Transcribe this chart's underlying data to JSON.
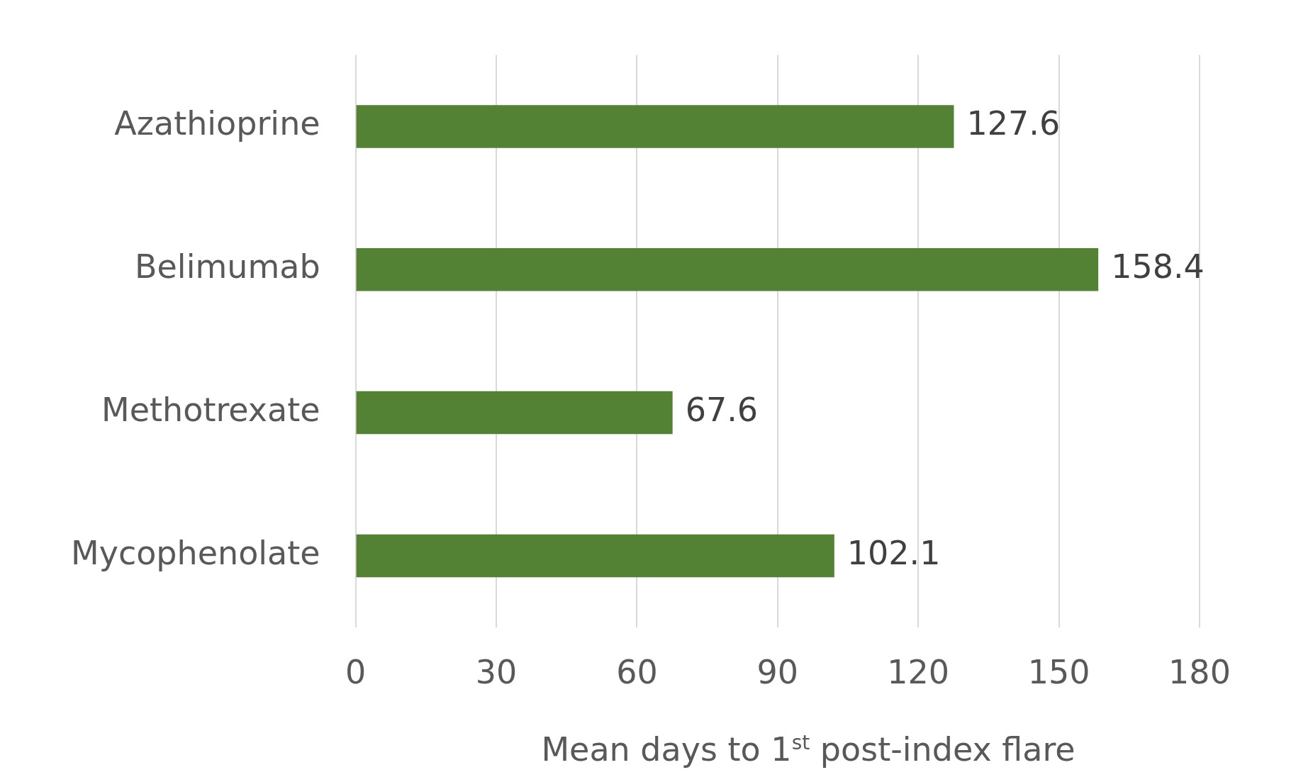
{
  "chart_data": {
    "type": "bar",
    "orientation": "horizontal",
    "categories": [
      "Azathioprine",
      "Belimumab",
      "Methotrexate",
      "Mycophenolate"
    ],
    "values": [
      127.6,
      158.4,
      67.6,
      102.1
    ],
    "color": "#548235",
    "xlim": [
      0,
      180
    ],
    "xticks": [
      0,
      30,
      60,
      90,
      120,
      150,
      180
    ],
    "xlabel": "Mean days to 1$^{st}$ post-index flare",
    "grid": "x",
    "data_labels": true,
    "legend": false
  }
}
